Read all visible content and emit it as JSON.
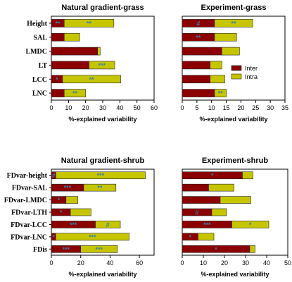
{
  "colors": {
    "inter": "#8b0000",
    "intra": "#c6c600",
    "significance": "#3a7fa8"
  },
  "legend": {
    "inter_label": "Inter",
    "intra_label": "Intra",
    "placement": "inside top-right panel"
  },
  "chart_data": [
    {
      "type": "bar",
      "stacked": true,
      "orientation": "horizontal",
      "title": "Natural gradient-grass",
      "xlabel": "%-explained variability",
      "xlim": [
        0,
        60
      ],
      "xticks": [
        0,
        10,
        20,
        30,
        40,
        50,
        60
      ],
      "show_category_labels": true,
      "categories": [
        "Height",
        "SAL",
        "LMDC",
        "LT",
        "LCC",
        "LNC"
      ],
      "series": [
        {
          "name": "Inter",
          "values": [
            7.5,
            7.5,
            27,
            22,
            6.5,
            7.5
          ],
          "significance": [
            "**",
            "",
            "",
            "",
            "*",
            ""
          ]
        },
        {
          "name": "Intra",
          "values": [
            29,
            9,
            1.5,
            15,
            34,
            12.5
          ],
          "significance": [
            "**",
            "",
            "",
            "***",
            "**",
            "**"
          ]
        }
      ]
    },
    {
      "type": "bar",
      "stacked": true,
      "orientation": "horizontal",
      "title": "Experiment-grass",
      "xlabel": "%-explained variability",
      "xlim": [
        0,
        35
      ],
      "xticks": [
        0,
        5,
        10,
        15,
        20,
        25,
        30,
        35
      ],
      "show_category_labels": false,
      "categories": [
        "Height",
        "SAL",
        "LMDC",
        "LT",
        "LCC",
        "LNC"
      ],
      "series": [
        {
          "name": "Inter",
          "values": [
            11,
            11,
            13.5,
            9.5,
            9.5,
            11
          ],
          "significance": [
            "#",
            "**",
            "",
            "",
            "",
            ""
          ]
        },
        {
          "name": "Intra",
          "values": [
            13,
            7.5,
            6,
            4,
            5,
            4
          ],
          "significance": [
            "**",
            "",
            "",
            "",
            "",
            "**"
          ]
        }
      ]
    },
    {
      "type": "bar",
      "stacked": true,
      "orientation": "horizontal",
      "title": "Natural gradient-shrub",
      "xlabel": "%-explained variability",
      "xlim": [
        0,
        70
      ],
      "xticks": [
        0,
        20,
        40,
        60
      ],
      "show_category_labels": true,
      "categories": [
        "FDvar-height",
        "FDvar-SAL",
        "FDvar-LMDC",
        "FDvar-LTH",
        "FDvar-LCC",
        "FDvar-LNC",
        "FDis"
      ],
      "series": [
        {
          "name": "Inter",
          "values": [
            3,
            22,
            10,
            13,
            30,
            3,
            20
          ],
          "significance": [
            "#",
            "***",
            "*",
            "*",
            "***",
            "*",
            "***"
          ]
        },
        {
          "name": "Intra",
          "values": [
            61,
            22,
            8,
            14,
            17,
            50,
            25
          ],
          "significance": [
            "***",
            "**",
            "",
            "",
            "#",
            "***",
            "***"
          ]
        }
      ]
    },
    {
      "type": "bar",
      "stacked": true,
      "orientation": "horizontal",
      "title": "Experiment-shrub",
      "xlabel": "%-explained variability",
      "xlim": [
        0,
        50
      ],
      "xticks": [
        0,
        10,
        20,
        30,
        40,
        50
      ],
      "show_category_labels": false,
      "categories": [
        "FDvar-height",
        "FDvar-SAL",
        "FDvar-LMDC",
        "FDvar-LTH",
        "FDvar-LCC",
        "FDvar-LNC",
        "FDis"
      ],
      "series": [
        {
          "name": "Inter",
          "values": [
            28.5,
            12.5,
            18,
            14,
            23.5,
            7.5,
            32
          ],
          "significance": [
            "*",
            "",
            "",
            "#",
            "***",
            "*",
            "*"
          ]
        },
        {
          "name": "Intra",
          "values": [
            5,
            12,
            14.5,
            7,
            17.5,
            7.5,
            2.5
          ],
          "significance": [
            "",
            "",
            "",
            "",
            "*",
            "",
            ""
          ]
        }
      ]
    }
  ]
}
